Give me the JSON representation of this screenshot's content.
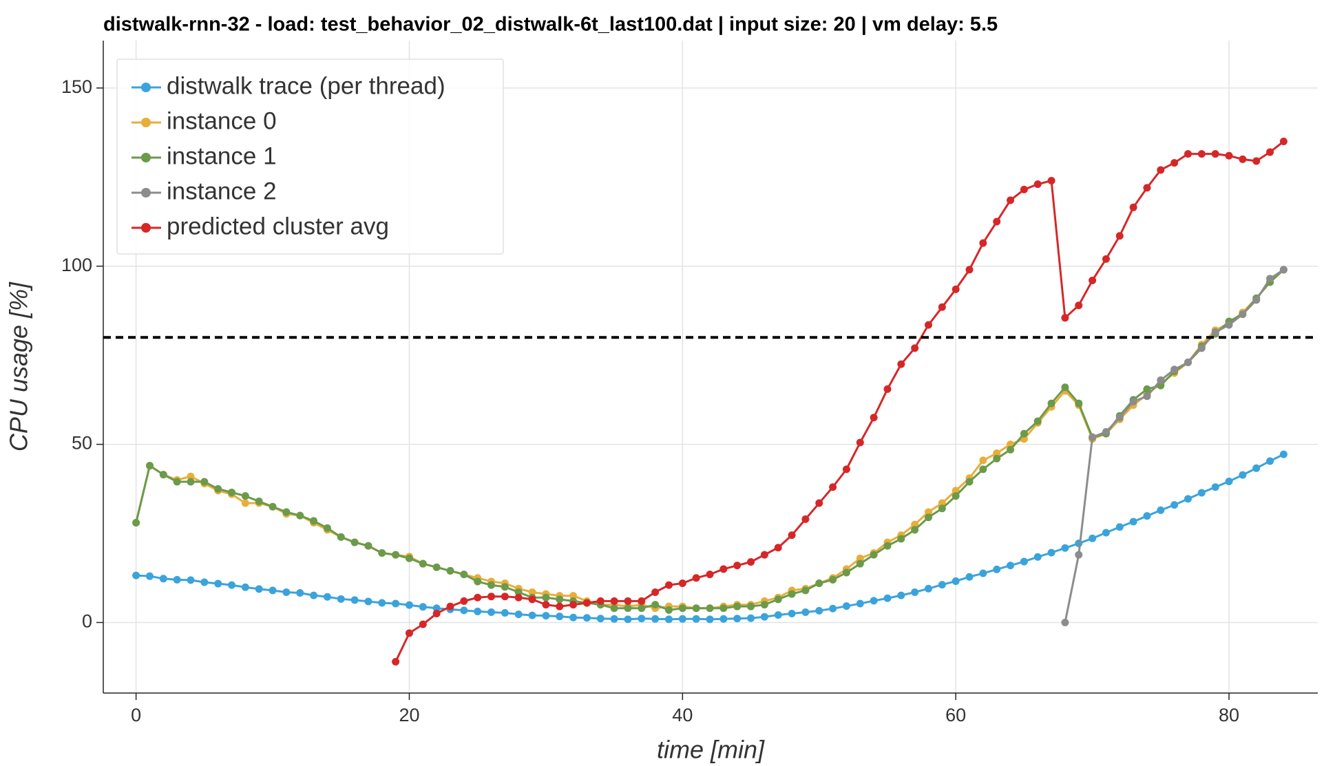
{
  "chart_data": {
    "type": "line",
    "title": "distwalk-rnn-32 - load: test_behavior_02_distwalk-6t_last100.dat | input size: 20 | vm delay: 5.5",
    "xlabel": "time [min]",
    "ylabel": "CPU usage [%]",
    "x": [
      0,
      1,
      2,
      3,
      4,
      5,
      6,
      7,
      8,
      9,
      10,
      11,
      12,
      13,
      14,
      15,
      16,
      17,
      18,
      19,
      20,
      21,
      22,
      23,
      24,
      25,
      26,
      27,
      28,
      29,
      30,
      31,
      32,
      33,
      34,
      35,
      36,
      37,
      38,
      39,
      40,
      41,
      42,
      43,
      44,
      45,
      46,
      47,
      48,
      49,
      50,
      51,
      52,
      53,
      54,
      55,
      56,
      57,
      58,
      59,
      60,
      61,
      62,
      63,
      64,
      65,
      66,
      67,
      68,
      69,
      70,
      71,
      72,
      73,
      74,
      75,
      76,
      77,
      78,
      79,
      80,
      81,
      82,
      83,
      84
    ],
    "series": [
      {
        "name": "distwalk trace (per thread)",
        "color": "#3ba3dc",
        "values": [
          13.2,
          13,
          12.3,
          12,
          11.9,
          11.3,
          10.9,
          10.5,
          9.9,
          9.4,
          9,
          8.5,
          8.3,
          7.6,
          7.2,
          6.6,
          6.3,
          5.9,
          5.5,
          5.3,
          4.9,
          4.4,
          4.0,
          3.7,
          3.4,
          3.1,
          2.9,
          2.7,
          2.3,
          2.0,
          1.9,
          1.7,
          1.4,
          1.3,
          1.1,
          1.0,
          0.9,
          1.1,
          1.0,
          0.9,
          1.0,
          1.0,
          0.9,
          1.0,
          1.1,
          1.2,
          1.6,
          2.1,
          2.5,
          2.9,
          3.3,
          3.9,
          4.6,
          5.3,
          6.1,
          6.8,
          7.6,
          8.5,
          9.5,
          10.6,
          11.6,
          12.8,
          13.8,
          14.9,
          16.0,
          17.1,
          18.4,
          19.6,
          20.9,
          22.2,
          23.6,
          25.2,
          26.8,
          28.3,
          29.9,
          31.5,
          33.0,
          34.7,
          36.4,
          38.0,
          39.6,
          41.4,
          43.3,
          45.3,
          47.2
        ]
      },
      {
        "name": "instance 0",
        "color": "#e8ae3a",
        "values": [
          28,
          44,
          41.5,
          40,
          41,
          39,
          37,
          36,
          33.5,
          33.5,
          32.5,
          30.5,
          30,
          28,
          26,
          24,
          22.5,
          21.5,
          19.5,
          19,
          18.5,
          16.5,
          15.5,
          14.5,
          13.5,
          12.5,
          11.5,
          11,
          9.5,
          8.5,
          8,
          7.5,
          7.5,
          6,
          5,
          5,
          4.5,
          5,
          4,
          4.5,
          4.5,
          4,
          4,
          4.5,
          5,
          5,
          6,
          7,
          9,
          9.5,
          11,
          12.5,
          15,
          18,
          19.5,
          22.5,
          24.5,
          27.5,
          31,
          33.5,
          37,
          40.5,
          45.5,
          47.5,
          50,
          51.5,
          56,
          60.5,
          65,
          61,
          51.5,
          53,
          57,
          61,
          64,
          67,
          70,
          73,
          78,
          82,
          84,
          87,
          91,
          95.5,
          99
        ]
      },
      {
        "name": "instance 1",
        "color": "#6b9a4b",
        "values": [
          28,
          44,
          41.5,
          39.5,
          39.5,
          39.5,
          37.5,
          36.5,
          35.5,
          34,
          32.5,
          31,
          30,
          28.5,
          26.5,
          24,
          22.5,
          21.5,
          19.5,
          19,
          18,
          16.5,
          15.5,
          14.5,
          13.5,
          11.5,
          10.5,
          10,
          8.5,
          7,
          7,
          6.5,
          6,
          5.5,
          5,
          4,
          4,
          4,
          5,
          3.5,
          4,
          4,
          4,
          4,
          4.5,
          4.5,
          5,
          6.5,
          8,
          9,
          11,
          12,
          14,
          16.5,
          19,
          21.5,
          23.5,
          26,
          29.5,
          32,
          35.5,
          39.5,
          43,
          46,
          48.5,
          53,
          56.5,
          61.5,
          66,
          61.5,
          52,
          53,
          58,
          62.5,
          65.5,
          66.5,
          70.5,
          73,
          77.5,
          81,
          84.5,
          86.5,
          91,
          95.5,
          99
        ]
      },
      {
        "name": "instance 2",
        "color": "#8c8c8c",
        "values": [
          null,
          null,
          null,
          null,
          null,
          null,
          null,
          null,
          null,
          null,
          null,
          null,
          null,
          null,
          null,
          null,
          null,
          null,
          null,
          null,
          null,
          null,
          null,
          null,
          null,
          null,
          null,
          null,
          null,
          null,
          null,
          null,
          null,
          null,
          null,
          null,
          null,
          null,
          null,
          null,
          null,
          null,
          null,
          null,
          null,
          null,
          null,
          null,
          null,
          null,
          null,
          null,
          null,
          null,
          null,
          null,
          null,
          null,
          null,
          null,
          null,
          null,
          null,
          null,
          null,
          null,
          null,
          null,
          0,
          19,
          52,
          53.5,
          57.5,
          62,
          63.5,
          68,
          71,
          73,
          77,
          81.5,
          83.5,
          86.5,
          90.5,
          96.5,
          99
        ]
      },
      {
        "name": "predicted cluster avg",
        "color": "#d62728",
        "values": [
          null,
          null,
          null,
          null,
          null,
          null,
          null,
          null,
          null,
          null,
          null,
          null,
          null,
          null,
          null,
          null,
          null,
          null,
          null,
          -11,
          -3,
          -0.5,
          2.5,
          4.5,
          6,
          7,
          7.3,
          7.3,
          7,
          6.5,
          5,
          4.5,
          5,
          5.5,
          6,
          6,
          6,
          6,
          8.5,
          10.5,
          11,
          12.5,
          13.5,
          15,
          16,
          17,
          19,
          21,
          24.5,
          29,
          33.5,
          38,
          43,
          50.5,
          57.5,
          65.5,
          72.5,
          77,
          83.5,
          88.5,
          93.5,
          99,
          106.5,
          112.5,
          118.5,
          121.5,
          123,
          124,
          85.5,
          89,
          96,
          102,
          108.5,
          116.5,
          122,
          127,
          129,
          131.5,
          131.5,
          131.5,
          131,
          130,
          129.5,
          132,
          135
        ]
      }
    ],
    "threshold": 80,
    "xlim": [
      -2.4,
      86.5
    ],
    "ylim": [
      -19.8,
      163.3
    ],
    "xticks": [
      0,
      20,
      40,
      60,
      80
    ],
    "yticks": [
      0,
      50,
      100,
      150
    ],
    "grid": true,
    "legend": "upper left"
  }
}
